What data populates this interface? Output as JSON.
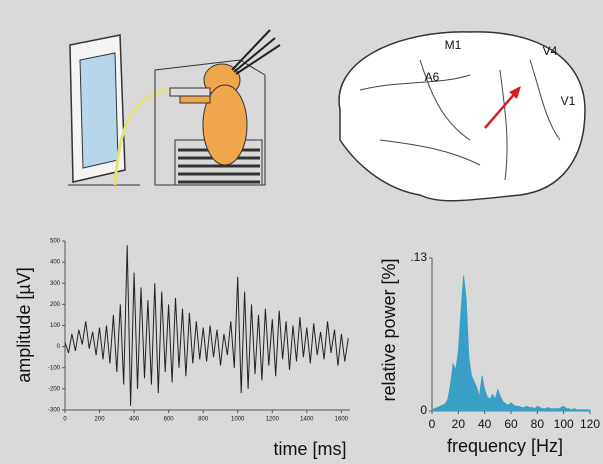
{
  "illustration": {
    "brain_labels": [
      "A6",
      "M1",
      "V4",
      "V1"
    ]
  },
  "chart_data": [
    {
      "type": "line",
      "xlabel": "time [ms]",
      "ylabel": "amplitude [µV]",
      "color": "#222222",
      "x": [
        0,
        20,
        40,
        60,
        80,
        100,
        120,
        140,
        160,
        180,
        200,
        220,
        240,
        260,
        280,
        300,
        320,
        340,
        360,
        380,
        400,
        420,
        440,
        460,
        480,
        500,
        520,
        540,
        560,
        580,
        600,
        620,
        640,
        660,
        680,
        700,
        720,
        740,
        760,
        780,
        800,
        820,
        840,
        860,
        880,
        900,
        920,
        940,
        960,
        980,
        1000,
        1020,
        1040,
        1060,
        1080,
        1100,
        1120,
        1140,
        1160,
        1180,
        1200,
        1220,
        1240,
        1260,
        1280,
        1300,
        1320,
        1340,
        1360,
        1380,
        1400,
        1420,
        1440,
        1460,
        1480,
        1500,
        1520,
        1540,
        1560,
        1580,
        1600,
        1620,
        1640
      ],
      "values": [
        20,
        -30,
        60,
        -20,
        80,
        10,
        120,
        -10,
        70,
        -40,
        90,
        -60,
        100,
        -80,
        150,
        -120,
        200,
        -180,
        480,
        -280,
        350,
        -200,
        280,
        -150,
        220,
        -180,
        300,
        -220,
        260,
        -120,
        200,
        -170,
        230,
        -100,
        180,
        -140,
        160,
        -80,
        120,
        -60,
        90,
        -70,
        100,
        -50,
        80,
        -90,
        60,
        -40,
        120,
        -100,
        330,
        -220,
        260,
        -200,
        200,
        -130,
        150,
        -160,
        180,
        -90,
        130,
        -140,
        170,
        -60,
        120,
        -110,
        100,
        -70,
        140,
        -50,
        90,
        -80,
        110,
        -40,
        70,
        -60,
        120,
        -30,
        80,
        -90,
        60,
        -70,
        40
      ],
      "xlim": [
        0,
        1650
      ],
      "ylim": [
        -300,
        500
      ],
      "xticks": [
        0,
        200,
        400,
        600,
        800,
        1000,
        1200,
        1400,
        1600
      ],
      "yticks": [
        -300,
        -200,
        -100,
        0,
        100,
        200,
        300,
        400,
        500
      ]
    },
    {
      "type": "area",
      "xlabel": "frequency [Hz]",
      "ylabel": "relative power [%]",
      "color": "#3a9fc4",
      "x": [
        0,
        2,
        4,
        6,
        8,
        10,
        12,
        14,
        16,
        18,
        20,
        22,
        24,
        26,
        28,
        30,
        32,
        34,
        36,
        38,
        40,
        42,
        44,
        46,
        48,
        50,
        52,
        54,
        56,
        58,
        60,
        62,
        64,
        66,
        68,
        70,
        72,
        74,
        76,
        78,
        80,
        82,
        84,
        86,
        88,
        90,
        92,
        94,
        96,
        98,
        100,
        102,
        104,
        106,
        108,
        110,
        112,
        114,
        116,
        118,
        120
      ],
      "values": [
        0.001,
        0.002,
        0.003,
        0.004,
        0.005,
        0.006,
        0.01,
        0.022,
        0.04,
        0.035,
        0.05,
        0.085,
        0.115,
        0.095,
        0.045,
        0.03,
        0.025,
        0.02,
        0.012,
        0.03,
        0.018,
        0.012,
        0.01,
        0.014,
        0.01,
        0.018,
        0.012,
        0.008,
        0.006,
        0.005,
        0.007,
        0.005,
        0.004,
        0.004,
        0.003,
        0.003,
        0.004,
        0.003,
        0.003,
        0.002,
        0.004,
        0.003,
        0.002,
        0.002,
        0.003,
        0.002,
        0.002,
        0.002,
        0.002,
        0.003,
        0.004,
        0.002,
        0.002,
        0.001,
        0.002,
        0.001,
        0.001,
        0.001,
        0.001,
        0.001,
        0.001
      ],
      "xlim": [
        0,
        120
      ],
      "ylim": [
        0,
        0.13
      ],
      "xticks": [
        0,
        20,
        40,
        60,
        80,
        100,
        120
      ],
      "yticks": [
        0,
        {
          "value": 0.13,
          "label": ".13"
        }
      ]
    }
  ]
}
